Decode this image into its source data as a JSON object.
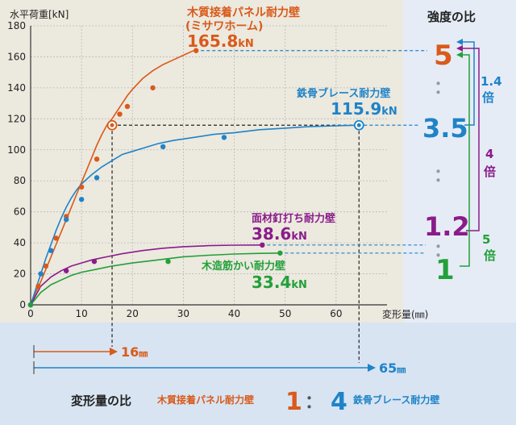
{
  "colors": {
    "wood": "#d95a1a",
    "steel": "#1f83c8",
    "nail": "#8a1c8a",
    "wood_muscle": "#22a03a",
    "ink": "#222222",
    "grid": "#b9b9b9",
    "bg_panel": "#ece9df",
    "bg_right": "#e6ecf6",
    "bg_bottom": "#d8e4f2"
  },
  "chart_data": {
    "type": "line",
    "ylabel": "水平荷重[kN]",
    "xlabel": "変形量(㎜)",
    "xlim": [
      0,
      70
    ],
    "ylim": [
      0,
      180
    ],
    "x_ticks": [
      0,
      10,
      20,
      30,
      40,
      50,
      60
    ],
    "y_ticks": [
      0,
      20,
      40,
      60,
      80,
      100,
      120,
      140,
      160,
      180
    ],
    "grid": true,
    "series": [
      {
        "key": "wood",
        "name": "木質接着パネル耐力壁",
        "name2": "(ミサワホーム)",
        "value_num": "165.8",
        "unit": "kN",
        "line": [
          [
            0,
            0
          ],
          [
            1,
            8
          ],
          [
            2,
            15
          ],
          [
            3,
            23
          ],
          [
            4,
            31
          ],
          [
            5,
            39
          ],
          [
            6,
            47
          ],
          [
            7,
            55
          ],
          [
            8,
            63
          ],
          [
            9,
            71
          ],
          [
            10,
            79
          ],
          [
            11,
            87
          ],
          [
            12,
            95
          ],
          [
            13,
            103
          ],
          [
            14,
            110
          ],
          [
            15,
            116
          ],
          [
            16,
            120
          ],
          [
            17,
            125
          ],
          [
            18,
            130
          ],
          [
            19,
            135
          ],
          [
            20,
            139
          ],
          [
            22,
            146
          ],
          [
            24,
            151
          ],
          [
            26,
            155
          ],
          [
            28,
            158
          ],
          [
            30,
            161
          ],
          [
            32,
            164
          ]
        ],
        "points": [
          [
            0,
            0
          ],
          [
            1.5,
            12
          ],
          [
            3,
            25
          ],
          [
            5,
            43
          ],
          [
            7,
            57
          ],
          [
            10,
            76
          ],
          [
            13,
            94
          ],
          [
            16,
            115
          ],
          [
            17.5,
            123
          ],
          [
            19,
            128
          ],
          [
            24,
            140
          ],
          [
            32.5,
            164
          ]
        ]
      },
      {
        "key": "steel",
        "name": "鉄骨ブレース耐力壁",
        "value_num": "115.9",
        "unit": "kN",
        "line": [
          [
            0,
            0
          ],
          [
            1,
            10
          ],
          [
            2,
            20
          ],
          [
            3,
            30
          ],
          [
            4,
            39
          ],
          [
            5,
            48
          ],
          [
            6,
            56
          ],
          [
            7,
            63
          ],
          [
            8,
            69
          ],
          [
            9,
            74
          ],
          [
            10,
            78
          ],
          [
            12,
            84
          ],
          [
            14,
            89
          ],
          [
            16,
            93
          ],
          [
            18,
            97
          ],
          [
            20,
            99
          ],
          [
            22,
            101
          ],
          [
            25,
            104
          ],
          [
            28,
            106
          ],
          [
            32,
            108
          ],
          [
            36,
            110
          ],
          [
            40,
            111
          ],
          [
            45,
            113
          ],
          [
            50,
            114
          ],
          [
            55,
            115
          ],
          [
            60,
            115.5
          ],
          [
            64.5,
            115.9
          ]
        ],
        "points": [
          [
            0,
            0
          ],
          [
            2,
            20
          ],
          [
            4,
            35
          ],
          [
            7,
            55
          ],
          [
            10,
            68
          ],
          [
            13,
            82
          ],
          [
            26,
            102
          ],
          [
            38,
            108
          ],
          [
            64.5,
            115.9
          ]
        ]
      },
      {
        "key": "nail",
        "name": "面材釘打ち耐力壁",
        "value_num": "38.6",
        "unit": "kN",
        "line": [
          [
            0,
            0
          ],
          [
            2,
            12
          ],
          [
            4,
            18
          ],
          [
            6,
            22
          ],
          [
            8,
            25
          ],
          [
            10,
            27
          ],
          [
            12,
            29
          ],
          [
            15,
            31
          ],
          [
            18,
            33
          ],
          [
            22,
            35
          ],
          [
            26,
            36.5
          ],
          [
            30,
            37.5
          ],
          [
            35,
            38.2
          ],
          [
            40,
            38.5
          ],
          [
            45.5,
            38.6
          ]
        ],
        "points": [
          [
            0,
            0
          ],
          [
            7,
            22
          ],
          [
            12.5,
            28
          ],
          [
            45.5,
            38.6
          ]
        ]
      },
      {
        "key": "wood_muscle",
        "name": "木造筋かい耐力壁",
        "value_num": "33.4",
        "unit": "kN",
        "line": [
          [
            0,
            0
          ],
          [
            2,
            8
          ],
          [
            4,
            13
          ],
          [
            6,
            16
          ],
          [
            8,
            19
          ],
          [
            10,
            21
          ],
          [
            13,
            23
          ],
          [
            16,
            25
          ],
          [
            20,
            27
          ],
          [
            25,
            29
          ],
          [
            30,
            31
          ],
          [
            35,
            32
          ],
          [
            40,
            32.8
          ],
          [
            45,
            33.2
          ],
          [
            49,
            33.4
          ]
        ],
        "points": [
          [
            0,
            0
          ],
          [
            27,
            28
          ],
          [
            49,
            33.4
          ]
        ]
      }
    ]
  },
  "ratio_panel": {
    "title": "強度の比",
    "ratio_5": "5",
    "ratio_35": "3.5",
    "ratio_12": "1.2",
    "ratio_1": "1",
    "sep": "：",
    "bracket_14_num": "1.4",
    "bracket_14_unit": "倍",
    "bracket_4_num": "4",
    "bracket_4_unit": "倍",
    "bracket_5_num": "5",
    "bracket_5_unit": "倍"
  },
  "deformation": {
    "mark_16": "16",
    "mark_65": "65",
    "unit": "㎜",
    "ratio_title": "変形量の比",
    "left_name": "木質接着パネル耐力壁",
    "left_val": "1",
    "colon": "：",
    "right_val": "4",
    "right_name": "鉄骨ブレース耐力壁"
  }
}
